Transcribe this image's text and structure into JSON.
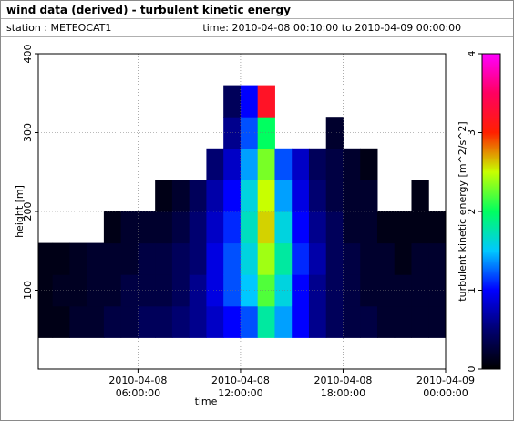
{
  "chart_data": {
    "type": "heatmap",
    "title": "wind data (derived) - turbulent kinetic energy",
    "station": "station : METEOCAT1",
    "time_range": "time: 2010-04-08 00:10:00 to 2010-04-09 00:00:00",
    "xlabel": "time",
    "ylabel": "height [m]",
    "colorbar_label": "turbulent kinetic energy [m^2/s^2]",
    "xlim": [
      0.167,
      24
    ],
    "xticks": [
      {
        "value": 6,
        "label": [
          "2010-04-08",
          "06:00:00"
        ]
      },
      {
        "value": 12,
        "label": [
          "2010-04-08",
          "12:00:00"
        ]
      },
      {
        "value": 18,
        "label": [
          "2010-04-08",
          "18:00:00"
        ]
      },
      {
        "value": 24,
        "label": [
          "2010-04-09",
          "00:00:00"
        ]
      }
    ],
    "ylim": [
      0,
      400
    ],
    "yticks": [
      100,
      200,
      300,
      400
    ],
    "zlim": [
      0,
      4
    ],
    "zticks": [
      0,
      1,
      2,
      3,
      4
    ],
    "colormap": [
      "#000000",
      "#000070",
      "#0000ff",
      "#00c8ff",
      "#00ff60",
      "#c8ff00",
      "#ff2000",
      "#ff0060",
      "#ff00ff"
    ],
    "grid": true,
    "x": [
      0,
      1,
      2,
      3,
      4,
      5,
      6,
      7,
      8,
      9,
      10,
      11,
      12,
      13,
      14,
      15,
      16,
      17,
      18,
      19,
      20,
      21,
      22,
      23
    ],
    "y": [
      40,
      80,
      120,
      160,
      200,
      240,
      280,
      320
    ],
    "z": [
      [
        0.1,
        0.1,
        0.1,
        null,
        null,
        null,
        null,
        null
      ],
      [
        0.1,
        0.15,
        0.1,
        null,
        null,
        null,
        null,
        null
      ],
      [
        0.2,
        0.15,
        0.15,
        null,
        null,
        null,
        null,
        null
      ],
      [
        0.2,
        0.2,
        0.2,
        null,
        null,
        null,
        null,
        null
      ],
      [
        0.3,
        0.2,
        0.2,
        0.1,
        null,
        null,
        null,
        null
      ],
      [
        0.3,
        0.3,
        0.2,
        0.2,
        null,
        null,
        null,
        null
      ],
      [
        0.4,
        0.3,
        0.3,
        0.2,
        null,
        null,
        null,
        null
      ],
      [
        0.4,
        0.3,
        0.3,
        0.2,
        0.1,
        null,
        null,
        null
      ],
      [
        0.5,
        0.4,
        0.4,
        0.3,
        0.2,
        null,
        null,
        null
      ],
      [
        0.6,
        0.6,
        0.5,
        0.5,
        0.4,
        null,
        null,
        null
      ],
      [
        0.8,
        0.9,
        0.9,
        0.8,
        0.7,
        0.5,
        null,
        null
      ],
      [
        1.0,
        1.2,
        1.2,
        1.1,
        1.0,
        0.8,
        0.6,
        0.4
      ],
      [
        1.2,
        1.5,
        1.6,
        1.7,
        1.6,
        1.4,
        1.2,
        1.0
      ],
      [
        1.8,
        2.2,
        2.4,
        2.6,
        2.5,
        2.3,
        2.0,
        3.2
      ],
      [
        1.4,
        1.6,
        1.8,
        1.6,
        1.4,
        1.2,
        null,
        null
      ],
      [
        1.0,
        1.0,
        1.1,
        1.0,
        0.9,
        0.8,
        null,
        null
      ],
      [
        0.6,
        0.6,
        0.7,
        0.6,
        0.5,
        0.4,
        null,
        null
      ],
      [
        0.4,
        0.4,
        0.4,
        0.4,
        0.3,
        0.3,
        0.2,
        null
      ],
      [
        0.3,
        0.3,
        0.3,
        0.2,
        0.2,
        0.2,
        null,
        null
      ],
      [
        0.3,
        0.2,
        0.2,
        0.2,
        0.2,
        0.1,
        null,
        null
      ],
      [
        0.2,
        0.2,
        0.2,
        0.1,
        null,
        null,
        null,
        null
      ],
      [
        0.2,
        0.2,
        0.1,
        0.1,
        null,
        null,
        null,
        null
      ],
      [
        0.2,
        0.2,
        0.2,
        0.1,
        0.1,
        null,
        null,
        null
      ],
      [
        0.2,
        0.2,
        0.2,
        0.1,
        null,
        null,
        null,
        null
      ]
    ]
  }
}
